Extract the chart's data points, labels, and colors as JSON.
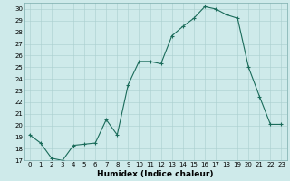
{
  "x": [
    0,
    1,
    2,
    3,
    4,
    5,
    6,
    7,
    8,
    9,
    10,
    11,
    12,
    13,
    14,
    15,
    16,
    17,
    18,
    19,
    20,
    21,
    22,
    23
  ],
  "y": [
    19.2,
    18.5,
    17.2,
    17.0,
    18.3,
    18.4,
    18.5,
    20.5,
    19.2,
    23.5,
    25.5,
    25.5,
    25.3,
    27.7,
    28.5,
    29.2,
    30.2,
    30.0,
    29.5,
    29.2,
    25.0,
    22.5,
    20.1,
    20.1
  ],
  "line_color": "#1a6b5a",
  "marker": "+",
  "marker_size": 3,
  "bg_color": "#ceeaea",
  "grid_color": "#aacece",
  "xlabel": "Humidex (Indice chaleur)",
  "xlabel_fontsize": 6.5,
  "tick_fontsize": 5,
  "xlim": [
    -0.5,
    23.5
  ],
  "ylim": [
    17,
    30.5
  ],
  "yticks": [
    17,
    18,
    19,
    20,
    21,
    22,
    23,
    24,
    25,
    26,
    27,
    28,
    29,
    30
  ],
  "xticks": [
    0,
    1,
    2,
    3,
    4,
    5,
    6,
    7,
    8,
    9,
    10,
    11,
    12,
    13,
    14,
    15,
    16,
    17,
    18,
    19,
    20,
    21,
    22,
    23
  ],
  "line_width": 0.8,
  "markeredgewidth": 0.8
}
